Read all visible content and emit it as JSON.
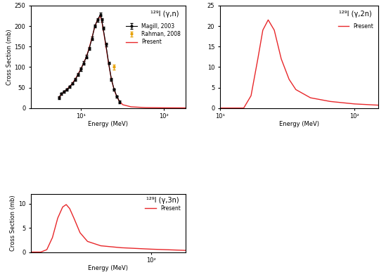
{
  "chart_data": [
    {
      "type": "line",
      "annotation": "¹²⁹I (γ,n)",
      "x_label": "Energy (MeV)",
      "y_label": "Cross Section (mb)",
      "log": "x",
      "xlim": [
        2.5,
        180
      ],
      "xticks": [
        {
          "value": 10,
          "label": "10¹"
        },
        {
          "value": 100,
          "label": "10²"
        }
      ],
      "ylim": [
        0,
        250
      ],
      "yticks": [
        0,
        50,
        100,
        150,
        200,
        250
      ],
      "legend": "upper right",
      "series": [
        {
          "name": "Magill, 2003",
          "type": "errorbar",
          "color": "#000000",
          "marker": "circle",
          "line_style": "solid",
          "x": [
            5.41,
            5.84,
            6.31,
            6.81,
            7.36,
            7.94,
            8.58,
            9.26,
            10,
            10.8,
            11.66,
            12.59,
            13.59,
            14.68,
            15.85,
            17.11,
            17.78,
            18.48,
            19.95,
            21.54,
            23.26,
            25.12,
            27.1,
            29.3
          ],
          "values": [
            25,
            35,
            40,
            45,
            52,
            60,
            70,
            82,
            95,
            110,
            125,
            145,
            170,
            200,
            215,
            228,
            215,
            195,
            155,
            110,
            70,
            45,
            28,
            15
          ],
          "errors": [
            3,
            3,
            3,
            3,
            3,
            3,
            3,
            3,
            4,
            4,
            4,
            4,
            4,
            4,
            4,
            4,
            4,
            4,
            4,
            3,
            3,
            3,
            3,
            3
          ]
        },
        {
          "name": "Rahman, 2008",
          "type": "errorbar",
          "color": "#e69f00",
          "marker": "circle",
          "line_style": "none",
          "x": [
            25.1
          ],
          "values": [
            100
          ],
          "errors": [
            6
          ]
        },
        {
          "name": "Present",
          "type": "line",
          "color": "#e8272a",
          "marker": "none",
          "line_style": "solid",
          "x": [
            5.41,
            5.84,
            6.31,
            6.81,
            7.36,
            7.94,
            8.58,
            9.26,
            10,
            10.8,
            11.66,
            12.59,
            13.59,
            14.68,
            15.85,
            17.11,
            17.78,
            18.48,
            19.95,
            21.54,
            23.26,
            25.12,
            27.1,
            29.3,
            32,
            40,
            60,
            100,
            180
          ],
          "values": [
            25,
            34,
            40,
            46,
            53,
            61,
            71,
            83,
            96,
            110,
            126,
            147,
            172,
            198,
            216,
            224,
            214,
            193,
            152,
            108,
            70,
            44,
            27,
            15,
            8,
            3,
            1,
            0.5,
            0.3
          ]
        }
      ]
    },
    {
      "type": "line",
      "annotation": "¹²⁹I (γ,2n)",
      "x_label": "Energy (MeV)",
      "log": "x",
      "xlim": [
        10,
        150
      ],
      "xticks": [
        {
          "value": 10,
          "label": "10¹"
        },
        {
          "value": 100,
          "label": "10²"
        }
      ],
      "ylim": [
        0,
        25
      ],
      "yticks": [
        0,
        5,
        10,
        15,
        20,
        25
      ],
      "legend": "upper right",
      "series": [
        {
          "name": "Present",
          "type": "line",
          "color": "#e8272a",
          "marker": "none",
          "line_style": "solid",
          "x": [
            10,
            15,
            17,
            19.1,
            20.8,
            22.8,
            25.3,
            28.5,
            32.6,
            36.6,
            47,
            66,
            100,
            150
          ],
          "values": [
            0,
            0,
            3,
            12,
            19,
            21.5,
            19,
            12,
            7,
            4.5,
            2.5,
            1.6,
            1,
            0.7
          ]
        }
      ]
    },
    {
      "type": "line",
      "annotation": "¹²⁹I (γ,3n)",
      "x_label": "Energy (MeV)",
      "y_label": "Cross Section (mb)",
      "log": "x",
      "xlim": [
        24,
        150
      ],
      "xticks": [
        {
          "value": 100,
          "label": "10²"
        }
      ],
      "ylim": [
        0,
        12
      ],
      "yticks": [
        0,
        5,
        10
      ],
      "legend": "upper right",
      "series": [
        {
          "name": "Present",
          "type": "line",
          "color": "#e8272a",
          "marker": "none",
          "line_style": "solid",
          "x": [
            24,
            27,
            29,
            31,
            33,
            35,
            36.5,
            38,
            40,
            43,
            47,
            55,
            70,
            100,
            150
          ],
          "values": [
            0,
            0,
            0.5,
            3,
            7,
            9.3,
            9.8,
            9,
            7,
            4,
            2.2,
            1.3,
            0.9,
            0.6,
            0.35
          ]
        }
      ]
    }
  ]
}
